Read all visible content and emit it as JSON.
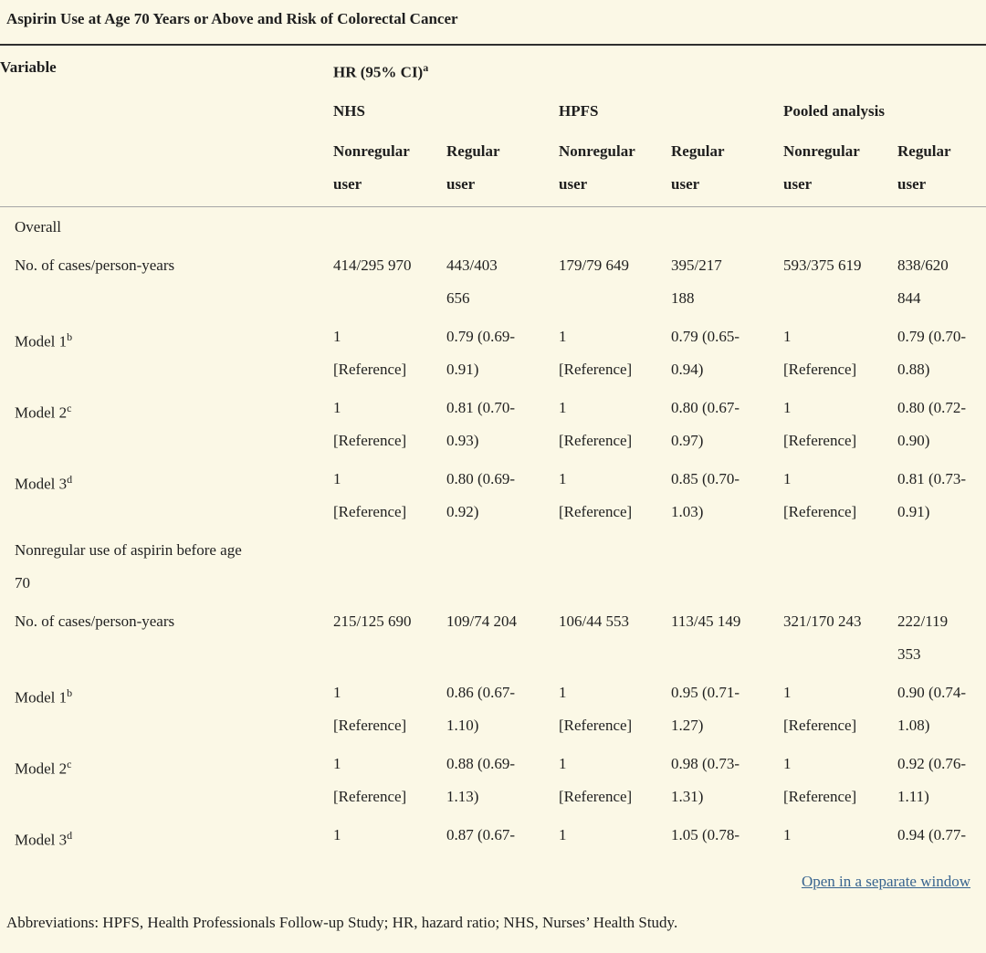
{
  "theme": {
    "background_color": "#fbf8e6",
    "text_color": "#1f1f1f",
    "link_color": "#38648f",
    "top_rule_color": "#2f2f2f",
    "header_rule_color": "#a6a6a6"
  },
  "page": {
    "title": "Aspirin Use at Age 70 Years or Above and Risk of Colorectal Cancer"
  },
  "table": {
    "header": {
      "variable_label": "Variable",
      "hr_label": "HR (95% CI)",
      "hr_sup": "a",
      "groups": [
        "NHS",
        "HPFS",
        "Pooled analysis"
      ],
      "user_cols": [
        [
          "Nonregular",
          "user"
        ],
        [
          "Regular",
          "user"
        ],
        [
          "Nonregular",
          "user"
        ],
        [
          "Regular",
          "user"
        ],
        [
          "Nonregular",
          "user"
        ],
        [
          "Regular",
          "user"
        ]
      ]
    },
    "rows": [
      {
        "type": "section",
        "label_lines": [
          "Overall"
        ],
        "sup": "",
        "cells": [
          [],
          [],
          [],
          [],
          [],
          []
        ]
      },
      {
        "type": "data",
        "label_lines": [
          "No. of cases/person-years"
        ],
        "sup": "",
        "cells": [
          [
            "414/295 970"
          ],
          [
            "443/403",
            "656"
          ],
          [
            "179/79 649"
          ],
          [
            "395/217",
            "188"
          ],
          [
            "593/375 619"
          ],
          [
            "838/620",
            "844"
          ]
        ]
      },
      {
        "type": "data",
        "label_lines": [
          "Model 1"
        ],
        "sup": "b",
        "cells": [
          [
            "1",
            "[Reference]"
          ],
          [
            "0.79 (0.69-",
            "0.91)"
          ],
          [
            "1",
            "[Reference]"
          ],
          [
            "0.79 (0.65-",
            "0.94)"
          ],
          [
            "1",
            "[Reference]"
          ],
          [
            "0.79 (0.70-",
            "0.88)"
          ]
        ]
      },
      {
        "type": "data",
        "label_lines": [
          "Model 2"
        ],
        "sup": "c",
        "cells": [
          [
            "1",
            "[Reference]"
          ],
          [
            "0.81 (0.70-",
            "0.93)"
          ],
          [
            "1",
            "[Reference]"
          ],
          [
            "0.80 (0.67-",
            "0.97)"
          ],
          [
            "1",
            "[Reference]"
          ],
          [
            "0.80 (0.72-",
            "0.90)"
          ]
        ]
      },
      {
        "type": "data",
        "label_lines": [
          "Model 3"
        ],
        "sup": "d",
        "cells": [
          [
            "1",
            "[Reference]"
          ],
          [
            "0.80 (0.69-",
            "0.92)"
          ],
          [
            "1",
            "[Reference]"
          ],
          [
            "0.85 (0.70-",
            "1.03)"
          ],
          [
            "1",
            "[Reference]"
          ],
          [
            "0.81 (0.73-",
            "0.91)"
          ]
        ]
      },
      {
        "type": "section",
        "label_lines": [
          "Nonregular use of aspirin before age",
          "70"
        ],
        "sup": "",
        "cells": [
          [],
          [],
          [],
          [],
          [],
          []
        ]
      },
      {
        "type": "data",
        "label_lines": [
          "No. of cases/person-years"
        ],
        "sup": "",
        "cells": [
          [
            "215/125 690"
          ],
          [
            "109/74 204"
          ],
          [
            "106/44 553"
          ],
          [
            "113/45 149"
          ],
          [
            "321/170 243"
          ],
          [
            "222/119",
            "353"
          ]
        ]
      },
      {
        "type": "data",
        "label_lines": [
          "Model 1"
        ],
        "sup": "b",
        "cells": [
          [
            "1",
            "[Reference]"
          ],
          [
            "0.86 (0.67-",
            "1.10)"
          ],
          [
            "1",
            "[Reference]"
          ],
          [
            "0.95 (0.71-",
            "1.27)"
          ],
          [
            "1",
            "[Reference]"
          ],
          [
            "0.90 (0.74-",
            "1.08)"
          ]
        ]
      },
      {
        "type": "data",
        "label_lines": [
          "Model 2"
        ],
        "sup": "c",
        "cells": [
          [
            "1",
            "[Reference]"
          ],
          [
            "0.88 (0.69-",
            "1.13)"
          ],
          [
            "1",
            "[Reference]"
          ],
          [
            "0.98 (0.73-",
            "1.31)"
          ],
          [
            "1",
            "[Reference]"
          ],
          [
            "0.92 (0.76-",
            "1.11)"
          ]
        ]
      },
      {
        "type": "data",
        "label_lines": [
          "Model 3"
        ],
        "sup": "d",
        "cells": [
          [
            "1"
          ],
          [
            "0.87 (0.67-"
          ],
          [
            "1"
          ],
          [
            "1.05 (0.78-"
          ],
          [
            "1"
          ],
          [
            "0.94 (0.77-"
          ]
        ]
      }
    ]
  },
  "footer": {
    "open_link": "Open in a separate window",
    "abbreviations": "Abbreviations: HPFS, Health Professionals Follow-up Study; HR, hazard ratio; NHS, Nurses’ Health Study."
  }
}
